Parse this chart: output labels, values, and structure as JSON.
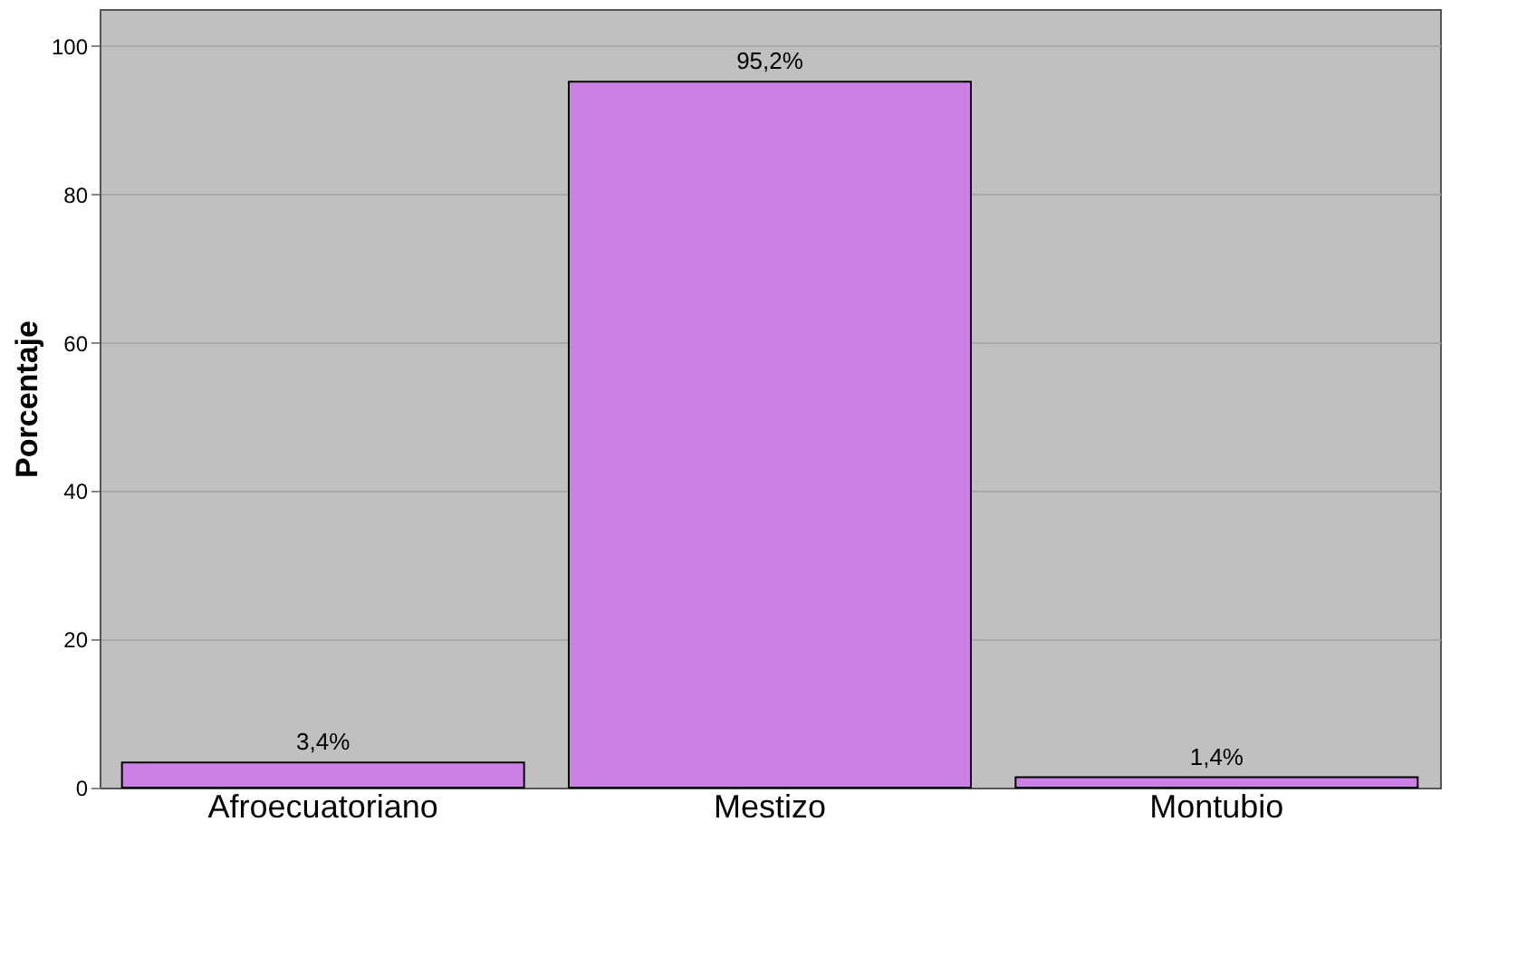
{
  "chart_data": {
    "type": "bar",
    "ylabel": "Porcentaje",
    "categories": [
      "Afroecuatoriano",
      "Mestizo",
      "Montubio"
    ],
    "values": [
      3.4,
      95.2,
      1.4
    ],
    "value_labels": [
      "3,4%",
      "95,2%",
      "1,4%"
    ],
    "color": "#cc80e6",
    "ylim": [
      0,
      105
    ],
    "yticks": [
      0,
      20,
      40,
      60,
      80,
      100
    ],
    "grid": "y"
  }
}
